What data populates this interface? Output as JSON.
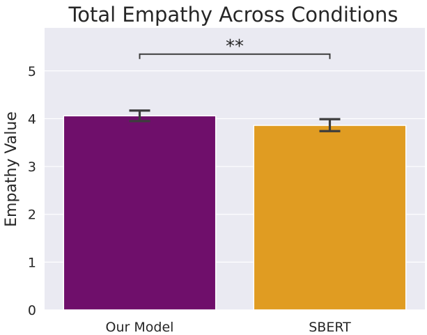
{
  "chart_data": {
    "type": "bar",
    "title": "Total Empathy Across Conditions",
    "xlabel": "",
    "ylabel": "Empathy Value",
    "categories": [
      "Our Model",
      "SBERT"
    ],
    "values": [
      4.06,
      3.86
    ],
    "error_low": [
      3.95,
      3.74
    ],
    "error_high": [
      4.17,
      3.99
    ],
    "colors": [
      "#6f0f6b",
      "#e09c22"
    ],
    "ylim": [
      0,
      5.9
    ],
    "yticks": [
      0,
      1,
      2,
      3,
      4,
      5
    ],
    "grid": true,
    "background": "#eaeaf2",
    "significance": {
      "pair": [
        0,
        1
      ],
      "label": "**",
      "y": 5.35
    }
  }
}
